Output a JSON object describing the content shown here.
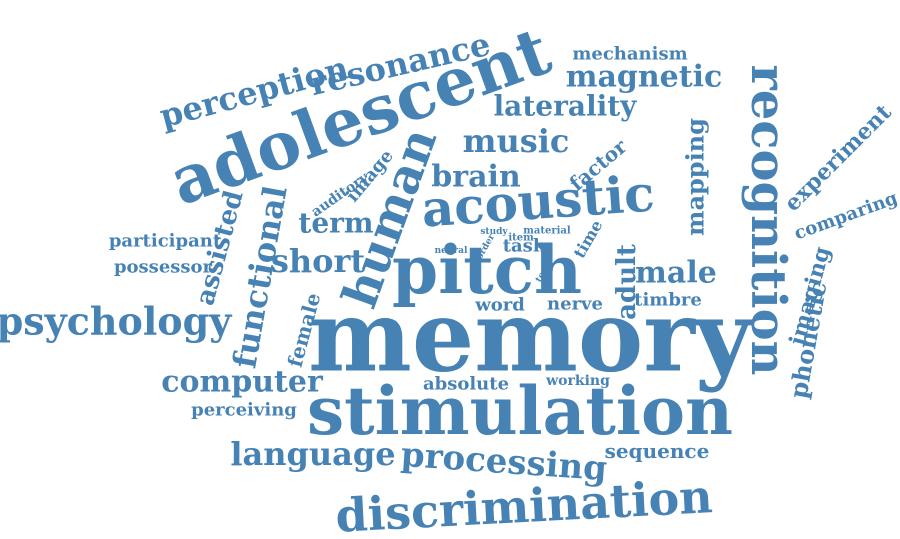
{
  "color": "#4682b4",
  "words": [
    "memory",
    "stimulation",
    "pitch",
    "adolescent",
    "acoustic",
    "human",
    "recognition",
    "discrimination",
    "processing",
    "psychology",
    "resonance",
    "perception",
    "functional",
    "language",
    "computer",
    "music",
    "brain",
    "magnetic",
    "laterality",
    "short",
    "mechanism",
    "term",
    "male",
    "assisted",
    "experiment",
    "mapping",
    "adult",
    "imaging",
    "phonetic",
    "comparing",
    "factor",
    "female",
    "timbre",
    "nerve",
    "word",
    "absolute",
    "working",
    "sequence",
    "perceiving",
    "participant",
    "possessor",
    "image",
    "auditory",
    "task",
    "time",
    "material",
    "item",
    "study",
    "order",
    "neural",
    "tone"
  ]
}
